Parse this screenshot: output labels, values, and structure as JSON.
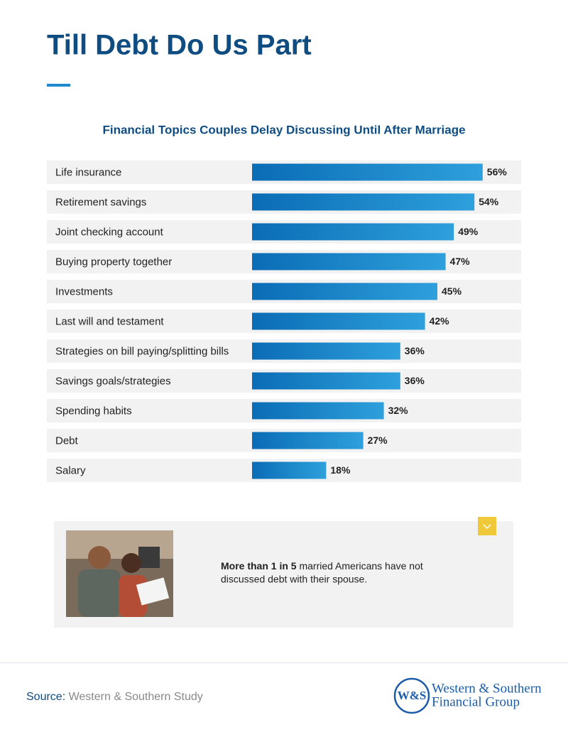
{
  "header": {
    "title": "Till Debt Do Us Part"
  },
  "chart_data": {
    "type": "bar",
    "orientation": "horizontal",
    "title": "Financial Topics Couples Delay Discussing Until After Marriage",
    "categories": [
      "Life insurance",
      "Retirement savings",
      "Joint checking account",
      "Buying property together",
      "Investments",
      "Last will and testament",
      "Strategies on bill paying/splitting bills",
      "Savings goals/strategies",
      "Spending habits",
      "Debt",
      "Salary"
    ],
    "values": [
      56,
      54,
      49,
      47,
      45,
      42,
      36,
      36,
      32,
      27,
      18
    ],
    "value_labels": [
      "56%",
      "54%",
      "49%",
      "47%",
      "45%",
      "42%",
      "36%",
      "36%",
      "32%",
      "27%",
      "18%"
    ],
    "color": "#0a6cb5"
  },
  "callout": {
    "emphasis": "More than 1 in 5",
    "lines": [
      "married Americans have not",
      "discussed debt with their spouse."
    ]
  },
  "footer": {
    "source_label": "Source:",
    "source": "Western & Southern Study",
    "logo": {
      "mark": "W&S",
      "line1": "Western & Southern",
      "line2": "Financial Group"
    }
  }
}
